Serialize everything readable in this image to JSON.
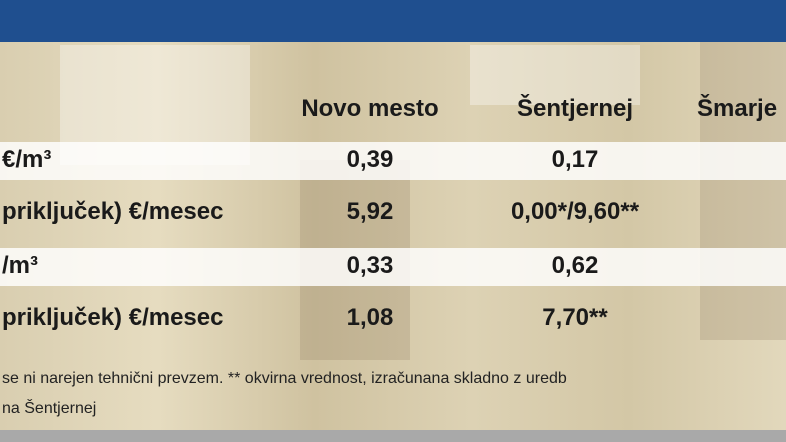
{
  "header": {
    "columns": [
      "Novo mesto",
      "Šentjernej",
      "Šmarje"
    ]
  },
  "table": {
    "rows": [
      [
        "€/m³",
        "0,39",
        "0,17"
      ],
      [
        "priključek) €/mesec",
        "5,92",
        "0,00*/9,60**"
      ],
      [
        "/m³",
        "0,33",
        "0,62"
      ],
      [
        "priključek) €/mesec",
        "1,08",
        "7,70**"
      ]
    ]
  },
  "footnote": [
    "se ni narejen tehnični prevzem. ** okvirna vrednost, izračunana skladno z uredb",
    "na Šentjernej"
  ]
}
